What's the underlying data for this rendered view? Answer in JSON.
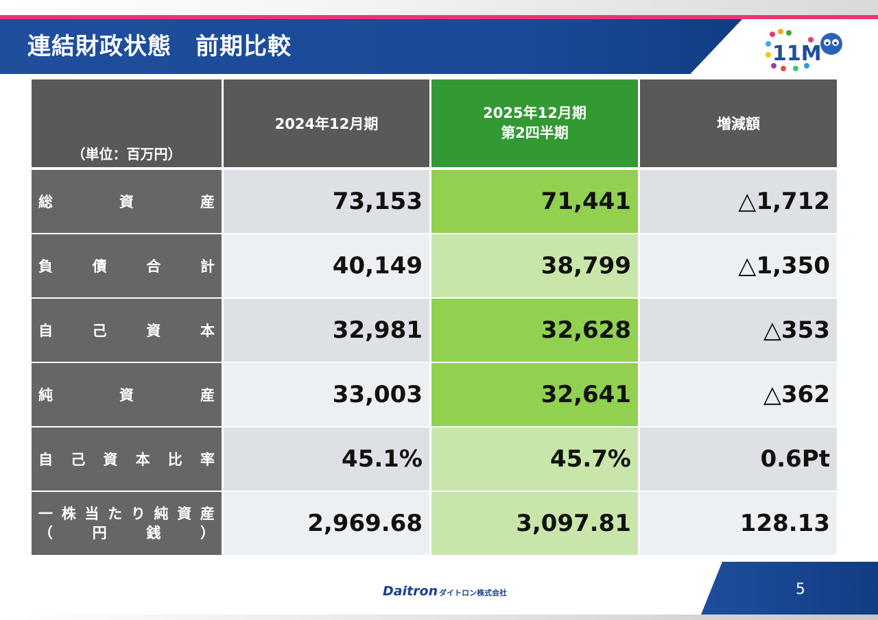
{
  "title": "連結財政状態　前期比較",
  "table": {
    "unit_label": "（単位：百万円）",
    "columns": [
      "2024年12月期",
      "2025年12月期\n第2四半期",
      "増減額"
    ],
    "rows": [
      {
        "label": [
          "総",
          "資",
          "産"
        ],
        "values": [
          "73,153",
          "71,441",
          "△1,712"
        ]
      },
      {
        "label": [
          "負",
          "債",
          "合",
          "計"
        ],
        "values": [
          "40,149",
          "38,799",
          "△1,350"
        ]
      },
      {
        "label": [
          "自",
          "己",
          "資",
          "本"
        ],
        "values": [
          "32,981",
          "32,628",
          "△353"
        ]
      },
      {
        "label": [
          "純",
          "資",
          "産"
        ],
        "values": [
          "33,003",
          "32,641",
          "△362"
        ]
      },
      {
        "label": [
          "自",
          "己",
          "資",
          "本",
          "比",
          "率"
        ],
        "values": [
          "45.1%",
          "45.7%",
          "0.6Pt"
        ]
      },
      {
        "label": [
          "一",
          "株",
          "当",
          "た",
          "り",
          "純",
          "資",
          "産"
        ],
        "label2": [
          "（",
          "円",
          "銭",
          "）"
        ],
        "values": [
          "2,969.68",
          "3,097.81",
          "128.13"
        ]
      }
    ]
  },
  "logo": {
    "text": "11M"
  },
  "footer": {
    "brand": "Daitron",
    "company": "ダイトロン株式会社",
    "page": "5"
  },
  "colors": {
    "accent_blue": "#1f4e9c",
    "accent_pink": "#e8386f",
    "green_header": "#339933",
    "green_strong": "#92d050",
    "green_light": "#c9e6aa"
  }
}
